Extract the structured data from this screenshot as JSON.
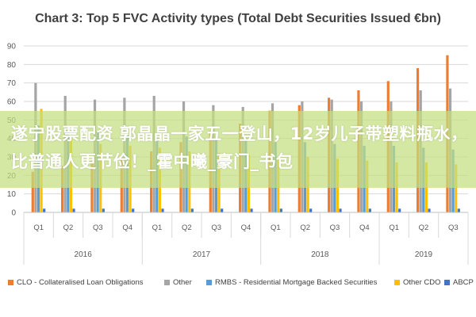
{
  "chart_data": {
    "type": "bar",
    "title": "Chart 3: Top 5 FVC Activity types (Total Debt Securities Issued €bn)",
    "ylim": [
      0,
      90
    ],
    "yticks": [
      0,
      10,
      20,
      30,
      40,
      50,
      60,
      70,
      80,
      90
    ],
    "grid": true,
    "legend_position": "bottom",
    "categories": [
      "Q1",
      "Q2",
      "Q3",
      "Q4",
      "Q1",
      "Q2",
      "Q3",
      "Q4",
      "Q1",
      "Q2",
      "Q3",
      "Q4",
      "Q1",
      "Q2",
      "Q3"
    ],
    "year_groups": [
      {
        "label": "2016",
        "count": 4
      },
      {
        "label": "2017",
        "count": 4
      },
      {
        "label": "2018",
        "count": 4
      },
      {
        "label": "2019",
        "count": 3
      }
    ],
    "series": [
      {
        "name": "CLO - Collateralised Loan Obligations",
        "color": "#ED7D31",
        "values": [
          22,
          25,
          28,
          30,
          33,
          38,
          44,
          48,
          55,
          58,
          62,
          66,
          71,
          78,
          85
        ]
      },
      {
        "name": "Other",
        "color": "#A5A5A5",
        "values": [
          70,
          63,
          61,
          62,
          63,
          60,
          58,
          57,
          59,
          60,
          61,
          60,
          60,
          66,
          67
        ]
      },
      {
        "name": "RMBS - Residential Mortgage Backed Securities",
        "color": "#5B9BD5",
        "values": [
          47,
          46,
          44,
          42,
          41,
          41,
          40,
          40,
          38,
          38,
          37,
          36,
          36,
          35,
          34
        ]
      },
      {
        "name": "Other CDO",
        "color": "#FFC000",
        "values": [
          56,
          40,
          37,
          36,
          35,
          33,
          32,
          31,
          30,
          30,
          29,
          28,
          27,
          27,
          26
        ]
      },
      {
        "name": "ABCP",
        "color": "#4472C4",
        "values": [
          2,
          2,
          2,
          2,
          2,
          2,
          2,
          2,
          2,
          2,
          2,
          2,
          2,
          2,
          2
        ]
      }
    ]
  },
  "overlay": {
    "text": "遂宁股票配资 郭晶晶一家五一登山，12岁儿子带塑料瓶水，比普通人更节俭！_霍中曦_豪门_书包"
  }
}
